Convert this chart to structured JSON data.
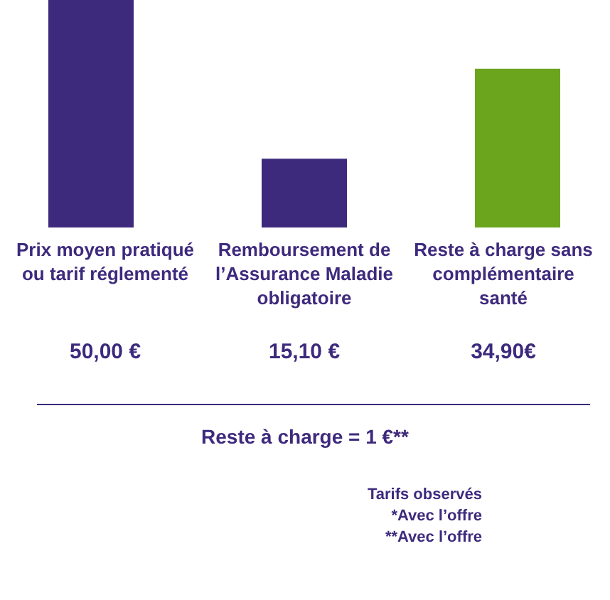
{
  "chart_data": {
    "type": "bar",
    "categories": [
      "Prix moyen pratiqué ou tarif réglementé",
      "Remboursement de l’Assurance Maladie obligatoire",
      "Reste à charge sans complémentaire santé"
    ],
    "values": [
      50.0,
      15.1,
      34.9
    ],
    "colors": [
      "#3d2a7d",
      "#3d2a7d",
      "#6aa51d"
    ],
    "value_labels": [
      "50,00 €",
      "15,10 €",
      "34,90€"
    ],
    "annotations": [
      "Reste à charge = 1 €**",
      "Tarifs observés",
      "*Avec l’offre",
      "**Avec l’offre"
    ]
  }
}
